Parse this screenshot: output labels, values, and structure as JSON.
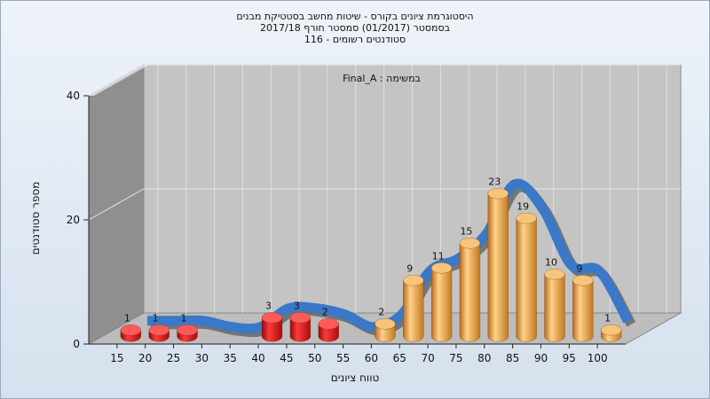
{
  "title": {
    "line1": "היסטוגרמת ציונים בקורס - שיטות מחשב בסטטיקת מבנים",
    "line2": "בסמסטר  (01/2017)  סמסטר חורף  2017/18",
    "line3": "סטודנטים רשומים - 116"
  },
  "chart_data": {
    "type": "bar",
    "series_label": "במשימה : Final_A",
    "xlabel": "טווח ציונים",
    "ylabel": "מספר סטודנטים",
    "ylim": [
      0,
      40
    ],
    "yticks": [
      "0",
      "20",
      "40"
    ],
    "categories": [
      "15",
      "20",
      "25",
      "30",
      "35",
      "40",
      "45",
      "50",
      "55",
      "60",
      "65",
      "70",
      "75",
      "80",
      "85",
      "90",
      "95",
      "100"
    ],
    "values": [
      1,
      1,
      1,
      0,
      0,
      3,
      3,
      2,
      0,
      2,
      9,
      11,
      15,
      23,
      19,
      10,
      9,
      1
    ],
    "bar_colors": {
      "fail": "#e0151a",
      "pass": "#e9a446"
    },
    "pass_from_index": 9,
    "curve_color": "#3a78c8",
    "curve_shadow_color": "#555555",
    "grid": true
  }
}
